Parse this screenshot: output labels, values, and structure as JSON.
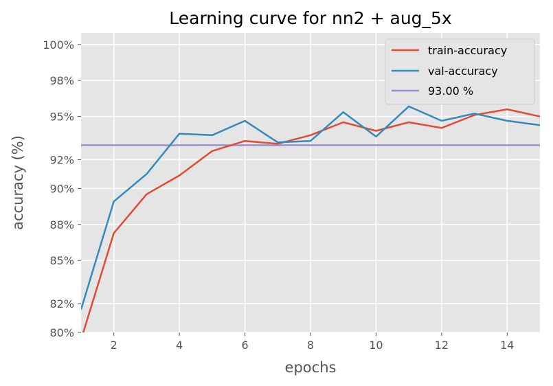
{
  "chart_data": {
    "type": "line",
    "title": "Learning curve for nn2 + aug_5x",
    "xlabel": "epochs",
    "ylabel": "accuracy (%)",
    "xlim": [
      1,
      15
    ],
    "ylim": [
      0.8,
      1.008
    ],
    "xticks": [
      2,
      4,
      6,
      8,
      10,
      12,
      14
    ],
    "yticks": [
      0.8,
      0.82,
      0.85,
      0.875,
      0.9,
      0.92,
      0.95,
      0.975,
      1.0
    ],
    "ytick_labels": [
      "80%",
      "82%",
      "85%",
      "88%",
      "90%",
      "92%",
      "95%",
      "98%",
      "100%"
    ],
    "grid": true,
    "legend_position": "top-right",
    "x": [
      1,
      2,
      3,
      4,
      5,
      6,
      7,
      8,
      9,
      10,
      11,
      12,
      13,
      14,
      15
    ],
    "series": [
      {
        "name": "train-accuracy",
        "color": "#E24A33",
        "values": [
          0.795,
          0.869,
          0.896,
          0.909,
          0.926,
          0.933,
          0.931,
          0.937,
          0.946,
          0.94,
          0.946,
          0.942,
          0.951,
          0.955,
          0.95
        ]
      },
      {
        "name": "val-accuracy",
        "color": "#348ABD",
        "values": [
          0.816,
          0.891,
          0.91,
          0.938,
          0.937,
          0.947,
          0.932,
          0.933,
          0.953,
          0.936,
          0.957,
          0.947,
          0.952,
          0.947,
          0.944
        ]
      }
    ],
    "reference_line": {
      "name": "93.00 %",
      "color": "#988ED5",
      "value": 0.93
    }
  }
}
